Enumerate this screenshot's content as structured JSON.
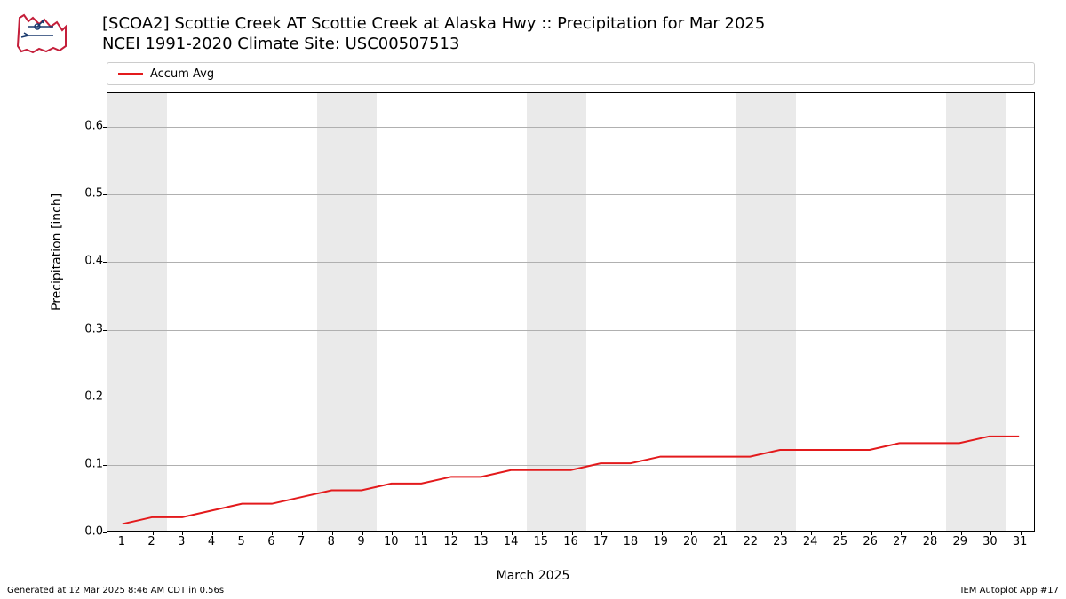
{
  "title_line1": "[SCOA2] Scottie Creek  AT Scottie Creek at Alaska Hwy :: Precipitation for Mar 2025",
  "title_line2": "NCEI 1991-2020 Climate Site: USC00507513",
  "legend_label": "Accum Avg",
  "yaxis_label": "Precipitation [inch]",
  "xaxis_label": "March 2025",
  "footer_left": "Generated at 12 Mar 2025 8:46 AM CDT in 0.56s",
  "footer_right": "IEM Autoplot App #17",
  "chart": {
    "type": "line",
    "background_color": "#ffffff",
    "border_color": "#000000",
    "grid_color": "#b0b0b0",
    "weekend_band_color": "#eaeaea",
    "line_color": "#e31a1c",
    "line_width": 2,
    "xlim": [
      0.5,
      31.5
    ],
    "ylim": [
      0.0,
      0.65
    ],
    "yticks": [
      0.0,
      0.1,
      0.2,
      0.3,
      0.4,
      0.5,
      0.6
    ],
    "xticks": [
      1,
      2,
      3,
      4,
      5,
      6,
      7,
      8,
      9,
      10,
      11,
      12,
      13,
      14,
      15,
      16,
      17,
      18,
      19,
      20,
      21,
      22,
      23,
      24,
      25,
      26,
      27,
      28,
      29,
      30,
      31
    ],
    "weekend_bands": [
      [
        0.5,
        2.5
      ],
      [
        7.5,
        9.5
      ],
      [
        14.5,
        16.5
      ],
      [
        21.5,
        23.5
      ],
      [
        28.5,
        30.5
      ]
    ],
    "series": {
      "x": [
        1,
        2,
        3,
        4,
        5,
        6,
        7,
        8,
        9,
        10,
        11,
        12,
        13,
        14,
        15,
        16,
        17,
        18,
        19,
        20,
        21,
        22,
        23,
        24,
        25,
        26,
        27,
        28,
        29,
        30,
        31
      ],
      "y": [
        0.01,
        0.02,
        0.02,
        0.03,
        0.04,
        0.04,
        0.05,
        0.06,
        0.06,
        0.07,
        0.07,
        0.08,
        0.08,
        0.09,
        0.09,
        0.09,
        0.1,
        0.1,
        0.11,
        0.11,
        0.11,
        0.11,
        0.12,
        0.12,
        0.12,
        0.12,
        0.13,
        0.13,
        0.13,
        0.14,
        0.14
      ]
    },
    "tick_fontsize": 13,
    "label_fontsize": 14,
    "title_fontsize": 18
  }
}
